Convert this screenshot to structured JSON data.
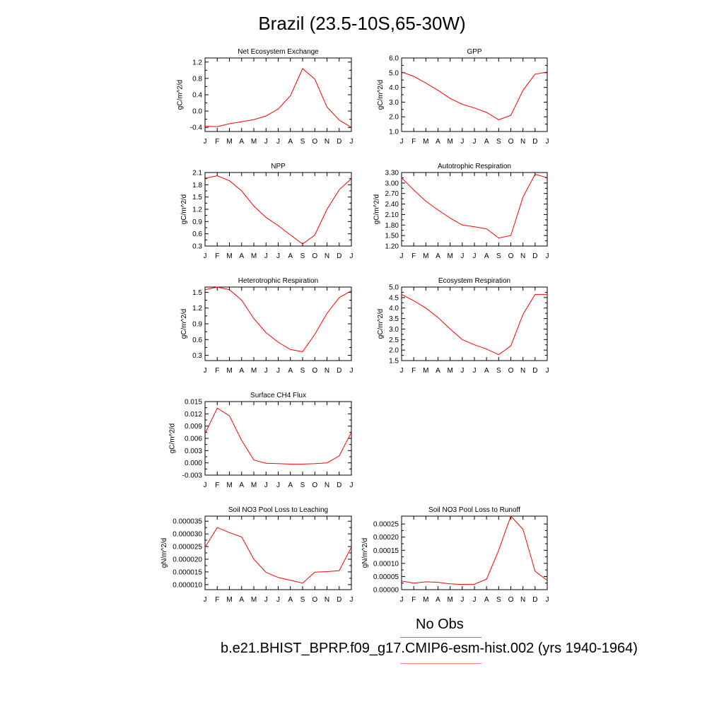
{
  "title": "Brazil (23.5-10S,65-30W)",
  "legend": {
    "obs_label": "No Obs",
    "case_label": "b.e21.BHIST_BPRP.f09_g17.CMIP6-esm-hist.002 (yrs 1940-1964)",
    "obs_color": "#0000ff",
    "case_color": "#ff0000"
  },
  "chart_data": [
    {
      "type": "line",
      "title": "Net Ecosystem Exchange",
      "ylabel": "gC/m^2/d",
      "categories": [
        "J",
        "F",
        "M",
        "A",
        "M",
        "J",
        "J",
        "A",
        "S",
        "O",
        "N",
        "D",
        "J"
      ],
      "ylim": [
        -0.5,
        1.3
      ],
      "yticks": [
        -0.4,
        0.0,
        0.4,
        0.8,
        1.2
      ],
      "ytick_labels": [
        "-0.4",
        "0.0",
        "0.4",
        "0.8",
        "1.2"
      ],
      "series": [
        {
          "values": [
            -0.37,
            -0.38,
            -0.31,
            -0.26,
            -0.21,
            -0.12,
            0.05,
            0.38,
            1.04,
            0.78,
            0.1,
            -0.22,
            -0.4
          ]
        }
      ]
    },
    {
      "type": "line",
      "title": "GPP",
      "ylabel": "gC/m^2/d",
      "categories": [
        "J",
        "F",
        "M",
        "A",
        "M",
        "J",
        "J",
        "A",
        "S",
        "O",
        "N",
        "D",
        "J"
      ],
      "ylim": [
        1.0,
        6.0
      ],
      "yticks": [
        1.0,
        2.0,
        3.0,
        4.0,
        5.0,
        6.0
      ],
      "ytick_labels": [
        "1.0",
        "2.0",
        "3.0",
        "4.0",
        "5.0",
        "6.0"
      ],
      "series": [
        {
          "values": [
            5.05,
            4.75,
            4.3,
            3.8,
            3.25,
            2.85,
            2.6,
            2.3,
            1.8,
            2.1,
            3.8,
            4.9,
            5.05
          ]
        }
      ]
    },
    {
      "type": "line",
      "title": "NPP",
      "ylabel": "gC/m^2/d",
      "categories": [
        "J",
        "F",
        "M",
        "A",
        "M",
        "J",
        "J",
        "A",
        "S",
        "O",
        "N",
        "D",
        "J"
      ],
      "ylim": [
        0.3,
        2.1
      ],
      "yticks": [
        0.3,
        0.6,
        0.9,
        1.2,
        1.5,
        1.8,
        2.1
      ],
      "ytick_labels": [
        "0.3",
        "0.6",
        "0.9",
        "1.2",
        "1.5",
        "1.8",
        "2.1"
      ],
      "series": [
        {
          "values": [
            1.96,
            2.02,
            1.9,
            1.65,
            1.28,
            1.0,
            0.8,
            0.57,
            0.35,
            0.57,
            1.2,
            1.68,
            1.95
          ]
        }
      ]
    },
    {
      "type": "line",
      "title": "Autotrophic Respiration",
      "ylabel": "gC/m^2/d",
      "categories": [
        "J",
        "F",
        "M",
        "A",
        "M",
        "J",
        "J",
        "A",
        "S",
        "O",
        "N",
        "D",
        "J"
      ],
      "ylim": [
        1.2,
        3.3
      ],
      "yticks": [
        1.2,
        1.5,
        1.8,
        2.1,
        2.4,
        2.7,
        3.0,
        3.3
      ],
      "ytick_labels": [
        "1.20",
        "1.50",
        "1.80",
        "2.10",
        "2.40",
        "2.70",
        "3.00",
        "3.30"
      ],
      "series": [
        {
          "values": [
            3.15,
            2.8,
            2.48,
            2.23,
            2.0,
            1.8,
            1.75,
            1.69,
            1.43,
            1.5,
            2.6,
            3.25,
            3.15
          ]
        }
      ]
    },
    {
      "type": "line",
      "title": "Heterotrophic Respiration",
      "ylabel": "gC/m^2/d",
      "categories": [
        "J",
        "F",
        "M",
        "A",
        "M",
        "J",
        "J",
        "A",
        "S",
        "O",
        "N",
        "D",
        "J"
      ],
      "ylim": [
        0.2,
        1.6
      ],
      "yticks": [
        0.3,
        0.6,
        0.9,
        1.2,
        1.5
      ],
      "ytick_labels": [
        "0.3",
        "0.6",
        "0.9",
        "1.2",
        "1.5"
      ],
      "series": [
        {
          "values": [
            1.55,
            1.6,
            1.55,
            1.35,
            1.0,
            0.73,
            0.55,
            0.41,
            0.37,
            0.7,
            1.1,
            1.4,
            1.53
          ]
        }
      ]
    },
    {
      "type": "line",
      "title": "Ecosystem Respiration",
      "ylabel": "gC/m^2/d",
      "categories": [
        "J",
        "F",
        "M",
        "A",
        "M",
        "J",
        "J",
        "A",
        "S",
        "O",
        "N",
        "D",
        "J"
      ],
      "ylim": [
        1.5,
        5.0
      ],
      "yticks": [
        1.5,
        2.0,
        2.5,
        3.0,
        3.5,
        4.0,
        4.5,
        5.0
      ],
      "ytick_labels": [
        "1.5",
        "2.0",
        "2.5",
        "3.0",
        "3.5",
        "4.0",
        "4.5",
        "5.0"
      ],
      "series": [
        {
          "values": [
            4.65,
            4.35,
            4.0,
            3.55,
            3.0,
            2.5,
            2.25,
            2.05,
            1.78,
            2.2,
            3.7,
            4.65,
            4.65
          ]
        }
      ]
    },
    {
      "type": "line",
      "title": "Surface CH4 Flux",
      "ylabel": "gC/m^2/d",
      "categories": [
        "J",
        "F",
        "M",
        "A",
        "M",
        "J",
        "J",
        "A",
        "S",
        "O",
        "N",
        "D",
        "J"
      ],
      "ylim": [
        -0.003,
        0.015
      ],
      "yticks": [
        -0.003,
        0.0,
        0.003,
        0.006,
        0.009,
        0.012,
        0.015
      ],
      "ytick_labels": [
        "-0.003",
        "0.000",
        "0.003",
        "0.006",
        "0.009",
        "0.012",
        "0.015"
      ],
      "series": [
        {
          "values": [
            0.0072,
            0.0134,
            0.0115,
            0.0055,
            0.0007,
            -0.0001,
            -0.0002,
            -0.0003,
            -0.0003,
            -0.0002,
            0.0,
            0.0017,
            0.0075
          ]
        }
      ]
    },
    {
      "type": "line",
      "title": "Soil NO3 Pool Loss to Leaching",
      "ylabel": "gN/m^2/d",
      "categories": [
        "J",
        "F",
        "M",
        "A",
        "M",
        "J",
        "J",
        "A",
        "S",
        "O",
        "N",
        "D",
        "J"
      ],
      "ylim": [
        8e-06,
        3.7e-05
      ],
      "yticks": [
        1e-05,
        1.5e-05,
        2e-05,
        2.5e-05,
        3e-05,
        3.5e-05
      ],
      "ytick_labels": [
        "0.000010",
        "0.000015",
        "0.000020",
        "0.000025",
        "0.000030",
        "0.000035"
      ],
      "series": [
        {
          "values": [
            2.47e-05,
            3.25e-05,
            3.05e-05,
            2.88e-05,
            2e-05,
            1.48e-05,
            1.28e-05,
            1.17e-05,
            1.06e-05,
            1.49e-05,
            1.51e-05,
            1.55e-05,
            2.48e-05
          ]
        }
      ]
    },
    {
      "type": "line",
      "title": "Soil NO3 Pool Loss to Runoff",
      "ylabel": "gN/m^2/d",
      "categories": [
        "J",
        "F",
        "M",
        "A",
        "M",
        "J",
        "J",
        "A",
        "S",
        "O",
        "N",
        "D",
        "J"
      ],
      "ylim": [
        0.0,
        0.00028
      ],
      "yticks": [
        0.0,
        5e-05,
        0.0001,
        0.00015,
        0.0002,
        0.00025
      ],
      "ytick_labels": [
        "0.00000",
        "0.00005",
        "0.00010",
        "0.00015",
        "0.00020",
        "0.00025"
      ],
      "series": [
        {
          "values": [
            3.3e-05,
            2.5e-05,
            3e-05,
            2.8e-05,
            2.2e-05,
            2e-05,
            2.1e-05,
            4e-05,
            0.00015,
            0.00028,
            0.00023,
            7e-05,
            3.5e-05
          ]
        }
      ]
    }
  ]
}
